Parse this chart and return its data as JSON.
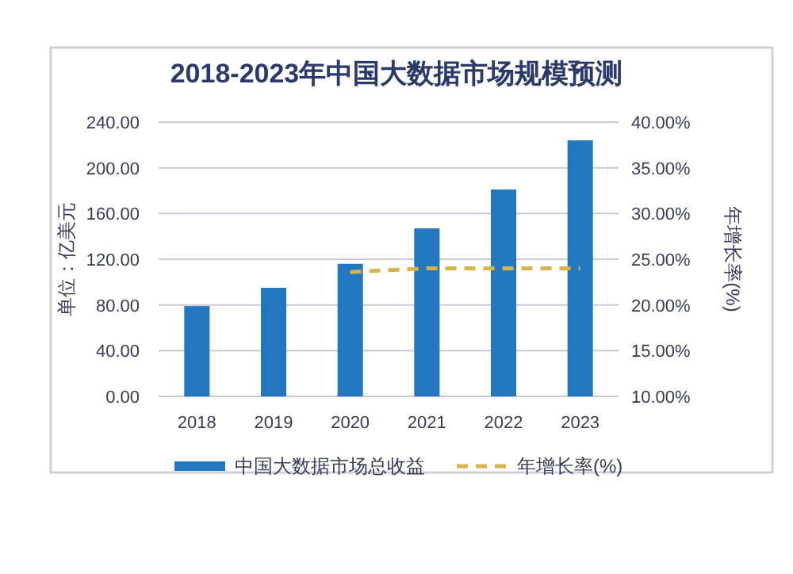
{
  "chart_data": {
    "type": "bar",
    "title": "2018-2023年中国大数据市场规模预测",
    "ylabel": "单位：亿美元",
    "y2label": "年增长率(%)",
    "categories": [
      "2018",
      "2019",
      "2020",
      "2021",
      "2022",
      "2023"
    ],
    "series": [
      {
        "name": "中国大数据市场总收益",
        "color": "#2277c0",
        "values": [
          79,
          95,
          116,
          147,
          181,
          224
        ]
      },
      {
        "name": "年增长率(%)",
        "type": "line",
        "axis": "y2",
        "color": "#d9b44a",
        "line_style": "dashed",
        "marker": "none",
        "values": [
          null,
          null,
          23.6,
          24,
          24,
          24
        ]
      }
    ],
    "ylim": [
      0,
      240
    ],
    "yticks": [
      {
        "value": 0,
        "label": "0.00"
      },
      {
        "value": 40,
        "label": "40.00"
      },
      {
        "value": 80,
        "label": "80.00"
      },
      {
        "value": 120,
        "label": "120.00"
      },
      {
        "value": 160,
        "label": "160.00"
      },
      {
        "value": 200,
        "label": "200.00"
      },
      {
        "value": 240,
        "label": "240.00"
      }
    ],
    "y2lim": [
      10,
      40
    ],
    "y2ticks": [
      {
        "value": 10,
        "label": "10.00%"
      },
      {
        "value": 15,
        "label": "15.00%"
      },
      {
        "value": 20,
        "label": "20.00%"
      },
      {
        "value": 25,
        "label": "25.00%"
      },
      {
        "value": 30,
        "label": "30.00%"
      },
      {
        "value": 35,
        "label": "35.00%"
      },
      {
        "value": 40,
        "label": "40.00%"
      }
    ],
    "grid": "y",
    "legend": "bottom"
  }
}
